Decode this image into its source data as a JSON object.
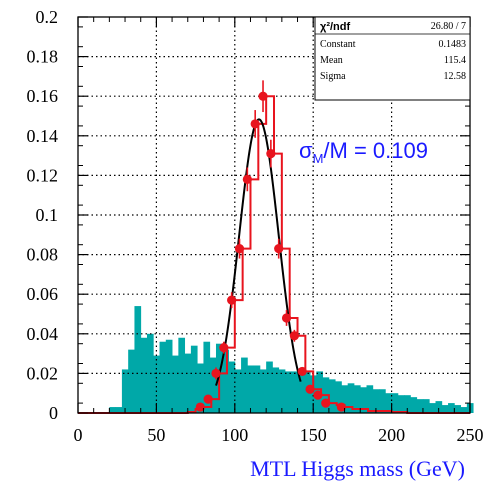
{
  "chart_data": {
    "type": "bar",
    "title": "",
    "xlabel": "MTL Higgs mass (GeV)",
    "ylabel": "",
    "xlim": [
      0,
      250
    ],
    "ylim": [
      0,
      0.2
    ],
    "grid": true,
    "xticks": [
      "0",
      "50",
      "100",
      "150",
      "200",
      "250"
    ],
    "yticks": [
      "0",
      "0.02",
      "0.04",
      "0.06",
      "0.08",
      "0.1",
      "0.12",
      "0.14",
      "0.16",
      "0.18",
      "0.2"
    ],
    "annotation": {
      "symbol": "σ",
      "subscript": "M",
      "rest": "/M = 0.109"
    },
    "stats": {
      "header": "χ²/ndf",
      "header_value": "26.80  /  7",
      "rows": [
        {
          "label": "Constant",
          "value": "0.1483"
        },
        {
          "label": "Mean",
          "value": "115.4"
        },
        {
          "label": "Sigma",
          "value": "12.58"
        }
      ]
    },
    "background_hist": {
      "color": "#00a8a8",
      "bin_width": 4,
      "x_start": 20,
      "values": [
        0.003,
        0.003,
        0.022,
        0.032,
        0.054,
        0.038,
        0.04,
        0.029,
        0.036,
        0.037,
        0.029,
        0.038,
        0.03,
        0.034,
        0.025,
        0.036,
        0.028,
        0.035,
        0.032,
        0.026,
        0.022,
        0.028,
        0.024,
        0.024,
        0.022,
        0.026,
        0.023,
        0.022,
        0.021,
        0.021,
        0.02,
        0.021,
        0.019,
        0.021,
        0.018,
        0.017,
        0.016,
        0.014,
        0.015,
        0.014,
        0.013,
        0.014,
        0.012,
        0.012,
        0.01,
        0.01,
        0.009,
        0.009,
        0.008,
        0.007,
        0.007,
        0.005,
        0.006,
        0.004,
        0.005,
        0.004,
        0.003,
        0.005
      ]
    },
    "signal_points": {
      "color": "#e8141e",
      "x": [
        78,
        83,
        88,
        93,
        98,
        103,
        108,
        113,
        118,
        123,
        128,
        133,
        138,
        143,
        148,
        153,
        158,
        168
      ],
      "y": [
        0.003,
        0.007,
        0.02,
        0.033,
        0.057,
        0.083,
        0.118,
        0.146,
        0.16,
        0.131,
        0.083,
        0.048,
        0.039,
        0.021,
        0.012,
        0.009,
        0.005,
        0.003
      ],
      "err": [
        0.002,
        0.002,
        0.003,
        0.003,
        0.004,
        0.005,
        0.006,
        0.007,
        0.008,
        0.007,
        0.005,
        0.004,
        0.003,
        0.002,
        0.002,
        0.002,
        0.001,
        0.001
      ]
    },
    "signal_hist_line": {
      "color": "#e8141e",
      "x_start": 0,
      "bin_width": 5,
      "values": [
        0,
        0,
        0,
        0,
        0,
        0,
        0,
        0,
        0,
        0,
        0,
        0,
        0,
        0,
        0.0005,
        0.002,
        0.003,
        0.007,
        0.02,
        0.033,
        0.057,
        0.083,
        0.118,
        0.146,
        0.16,
        0.131,
        0.083,
        0.048,
        0.039,
        0.021,
        0.012,
        0.009,
        0.005,
        0.004,
        0.003,
        0.002,
        0.002,
        0.001,
        0.001,
        0.001,
        0.0005,
        0.0005,
        0,
        0,
        0,
        0,
        0,
        0,
        0,
        0
      ]
    },
    "gauss_fit": {
      "constant": 0.1483,
      "mean": 115.4,
      "sigma": 12.58,
      "x_range": [
        88,
        142
      ],
      "color": "#000000"
    }
  }
}
